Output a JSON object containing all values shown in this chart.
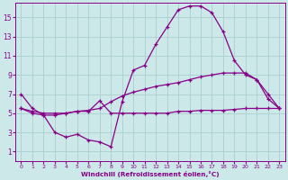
{
  "background_color": "#cce8e8",
  "line_color": "#880088",
  "grid_color": "#aad0d0",
  "xlabel": "Windchill (Refroidissement éolien,°C)",
  "xlabel_color": "#880088",
  "tick_color": "#880088",
  "xlim": [
    -0.5,
    23.5
  ],
  "ylim": [
    0,
    16.5
  ],
  "xticks": [
    0,
    1,
    2,
    3,
    4,
    5,
    6,
    7,
    8,
    9,
    10,
    11,
    12,
    13,
    14,
    15,
    16,
    17,
    18,
    19,
    20,
    21,
    22,
    23
  ],
  "yticks": [
    1,
    3,
    5,
    7,
    9,
    11,
    13,
    15
  ],
  "line1_x": [
    0,
    1,
    2,
    3,
    4,
    5,
    6,
    7,
    8,
    9,
    10,
    11,
    12,
    13,
    14,
    15,
    16,
    17,
    18,
    19,
    20,
    21,
    22,
    23
  ],
  "line1_y": [
    7.0,
    5.5,
    4.8,
    3.0,
    2.5,
    2.8,
    2.2,
    2.0,
    1.5,
    6.2,
    9.5,
    10.0,
    12.2,
    14.0,
    15.8,
    16.2,
    16.2,
    15.5,
    13.5,
    10.5,
    9.0,
    8.5,
    6.5,
    5.5
  ],
  "line2_x": [
    0,
    1,
    2,
    3,
    4,
    5,
    6,
    7,
    8,
    9,
    10,
    11,
    12,
    13,
    14,
    15,
    16,
    17,
    18,
    19,
    20,
    21,
    22,
    23
  ],
  "line2_y": [
    5.5,
    5.2,
    5.0,
    5.0,
    5.0,
    5.2,
    5.3,
    5.5,
    6.2,
    6.8,
    7.2,
    7.5,
    7.8,
    8.0,
    8.2,
    8.5,
    8.8,
    9.0,
    9.2,
    9.2,
    9.2,
    8.5,
    7.0,
    5.5
  ],
  "line3_x": [
    0,
    1,
    2,
    3,
    4,
    5,
    6,
    7,
    8,
    9,
    10,
    11,
    12,
    13,
    14,
    15,
    16,
    17,
    18,
    19,
    20,
    21,
    22,
    23
  ],
  "line3_y": [
    5.5,
    5.0,
    4.8,
    4.8,
    5.0,
    5.2,
    5.2,
    6.3,
    5.0,
    5.0,
    5.0,
    5.0,
    5.0,
    5.0,
    5.2,
    5.2,
    5.3,
    5.3,
    5.3,
    5.4,
    5.5,
    5.5,
    5.5,
    5.5
  ]
}
